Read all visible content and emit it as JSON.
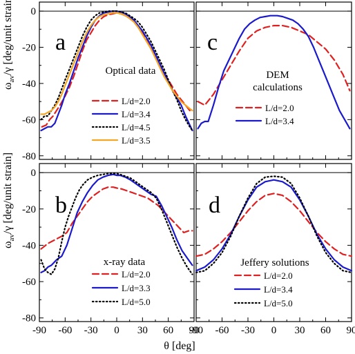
{
  "figure": {
    "xlabel": "θ [deg]",
    "ylabel_top": "ω",
    "ylabel_sub": "av",
    "ylabel_mid": "/",
    "ylabel_gamma": "γ",
    "ylabel_tail": " [deg/unit strain]",
    "xticks": [
      "-90",
      "-60",
      "-30",
      "0",
      "30",
      "60",
      "90"
    ],
    "yticks": [
      "0",
      "-20",
      "-40",
      "-60",
      "-80"
    ]
  },
  "styles": {
    "L/d=2.0": {
      "color": "#e02020",
      "dash": "9,5"
    },
    "L/d=3.4": {
      "color": "#1a1acc",
      "dash": ""
    },
    "L/d=3.3": {
      "color": "#1a1acc",
      "dash": ""
    },
    "L/d=4.5": {
      "color": "#000000",
      "dash": "1.5,3.5"
    },
    "L/d=5.0": {
      "color": "#000000",
      "dash": "1.5,3.5"
    },
    "L/d=3.5": {
      "color": "#f5a623",
      "dash": ""
    }
  },
  "chart_data": [
    {
      "panel": "a",
      "type": "line",
      "label": "a",
      "title": [
        "Optical data"
      ],
      "xlim": [
        -90,
        90
      ],
      "ylim": [
        -82,
        5
      ],
      "series": [
        {
          "name": "L/d=2.0",
          "x": [
            -87,
            -82,
            -78,
            -74,
            -70,
            -66,
            -60,
            -55,
            -50,
            -45,
            -40,
            -35,
            -30,
            -25,
            -20,
            -15,
            -10,
            -5,
            0,
            5,
            10,
            15,
            20,
            25,
            30,
            35,
            40,
            45,
            50,
            55,
            60,
            65,
            70,
            75,
            80,
            85,
            88
          ],
          "y": [
            -64,
            -63,
            -60,
            -58,
            -55,
            -52,
            -47,
            -42,
            -36,
            -29,
            -22,
            -16,
            -12,
            -8,
            -5,
            -3,
            -2,
            -1.5,
            -1,
            -1.5,
            -2.5,
            -4,
            -6,
            -9,
            -12,
            -16,
            -20,
            -24,
            -29,
            -34,
            -38,
            -42,
            -46,
            -49,
            -52,
            -55,
            -56
          ]
        },
        {
          "name": "L/d=3.4",
          "x": [
            -88,
            -84,
            -80,
            -76,
            -72,
            -68,
            -64,
            -60,
            -55,
            -50,
            -45,
            -40,
            -35,
            -30,
            -25,
            -20,
            -15,
            -10,
            -5,
            0,
            5,
            10,
            15,
            20,
            25,
            30,
            35,
            40,
            45,
            50,
            55,
            60,
            65,
            70,
            75,
            80,
            85,
            88
          ],
          "y": [
            -66,
            -65,
            -64,
            -64,
            -62,
            -57,
            -52,
            -46,
            -40,
            -33,
            -26,
            -20,
            -14,
            -9,
            -5,
            -2.5,
            -1,
            -0.5,
            0,
            0,
            -0.5,
            -1.5,
            -3,
            -5,
            -8,
            -11,
            -15,
            -19,
            -24,
            -29,
            -34,
            -39,
            -44,
            -48,
            -52,
            -58,
            -63,
            -66
          ]
        },
        {
          "name": "L/d=4.5",
          "x": [
            -88,
            -84,
            -80,
            -76,
            -72,
            -68,
            -64,
            -60,
            -55,
            -50,
            -45,
            -40,
            -35,
            -30,
            -25,
            -20,
            -15,
            -10,
            -5,
            0,
            5,
            10,
            15,
            20,
            25,
            30,
            35,
            40,
            45,
            50,
            55,
            60,
            65,
            70,
            75,
            80,
            85,
            88
          ],
          "y": [
            -60,
            -58,
            -58,
            -55,
            -52,
            -48,
            -43,
            -38,
            -32,
            -26,
            -20,
            -14,
            -9,
            -5,
            -2.5,
            -1,
            -0.5,
            0,
            0,
            0,
            -0.5,
            -1,
            -2.5,
            -4,
            -6,
            -9,
            -13,
            -17,
            -22,
            -27,
            -32,
            -38,
            -44,
            -49,
            -55,
            -60,
            -64,
            -66
          ]
        },
        {
          "name": "L/d=3.5",
          "x": [
            -88,
            -84,
            -80,
            -76,
            -72,
            -68,
            -64,
            -60,
            -55,
            -50,
            -45,
            -40,
            -35,
            -30,
            -25,
            -20,
            -15,
            -10,
            -5,
            0,
            5,
            10,
            15,
            20,
            25,
            30,
            35,
            40,
            45,
            50,
            55,
            60,
            65,
            70,
            75,
            80,
            85,
            88
          ],
          "y": [
            -57,
            -57,
            -56,
            -55,
            -53,
            -50,
            -46,
            -41,
            -35,
            -29,
            -23,
            -17,
            -12,
            -8,
            -5,
            -3,
            -2,
            -1.5,
            -1,
            -1,
            -1.5,
            -2.5,
            -4,
            -6,
            -9,
            -13,
            -17,
            -21,
            -26,
            -31,
            -36,
            -40,
            -44,
            -47,
            -50,
            -52,
            -54,
            -55
          ]
        }
      ]
    },
    {
      "panel": "c",
      "type": "line",
      "label": "c",
      "title": [
        "DEM",
        "calculations"
      ],
      "xlim": [
        -90,
        90
      ],
      "ylim": [
        -82,
        5
      ],
      "series": [
        {
          "name": "L/d=2.0",
          "x": [
            -88,
            -80,
            -70,
            -60,
            -50,
            -40,
            -30,
            -20,
            -10,
            0,
            10,
            20,
            30,
            40,
            50,
            60,
            70,
            80,
            88
          ],
          "y": [
            -50,
            -52,
            -46,
            -38,
            -30,
            -22,
            -15,
            -11,
            -9,
            -8,
            -8,
            -9,
            -11,
            -13,
            -17,
            -21,
            -27,
            -35,
            -44
          ]
        },
        {
          "name": "L/d=3.4",
          "x": [
            -88,
            -84,
            -80,
            -76,
            -70,
            -64,
            -58,
            -52,
            -46,
            -40,
            -34,
            -28,
            -22,
            -16,
            -10,
            -4,
            0,
            4,
            10,
            16,
            22,
            28,
            34,
            40,
            46,
            52,
            58,
            64,
            70,
            76,
            82,
            88
          ],
          "y": [
            -65,
            -62,
            -61,
            -61,
            -52,
            -42,
            -33,
            -27,
            -21,
            -15,
            -10,
            -7,
            -5,
            -3.5,
            -3,
            -2.5,
            -2.5,
            -2.5,
            -3,
            -4,
            -5,
            -7,
            -10,
            -14,
            -20,
            -27,
            -34,
            -41,
            -48,
            -55,
            -60,
            -65
          ]
        }
      ]
    },
    {
      "panel": "b",
      "type": "line",
      "label": "b",
      "title": [
        "x-ray data"
      ],
      "xlim": [
        -90,
        90
      ],
      "ylim": [
        -82,
        5
      ],
      "series": [
        {
          "name": "L/d=2.0",
          "x": [
            -88,
            -80,
            -72,
            -64,
            -58,
            -52,
            -46,
            -40,
            -34,
            -28,
            -22,
            -16,
            -10,
            -4,
            0,
            6,
            12,
            18,
            24,
            30,
            36,
            42,
            48,
            54,
            60,
            66,
            72,
            78,
            84,
            88
          ],
          "y": [
            -42,
            -39,
            -37,
            -35,
            -33,
            -28,
            -24,
            -20,
            -16,
            -13,
            -11,
            -9,
            -8,
            -8,
            -8.5,
            -9,
            -10,
            -11,
            -12,
            -13,
            -14,
            -16,
            -18,
            -21,
            -24,
            -27,
            -30,
            -33,
            -32,
            -32
          ]
        },
        {
          "name": "L/d=3.3",
          "x": [
            -88,
            -84,
            -80,
            -76,
            -70,
            -64,
            -58,
            -54,
            -50,
            -46,
            -40,
            -34,
            -28,
            -22,
            -16,
            -10,
            -4,
            0,
            4,
            10,
            16,
            22,
            28,
            34,
            40,
            46,
            52,
            58,
            64,
            70,
            76,
            82,
            88
          ],
          "y": [
            -55,
            -54,
            -52,
            -51,
            -48,
            -46,
            -40,
            -34,
            -28,
            -22,
            -16,
            -11,
            -7,
            -4,
            -2.5,
            -1.5,
            -1,
            -1.5,
            -1.5,
            -2.5,
            -4,
            -6,
            -8,
            -10,
            -12,
            -13,
            -18,
            -24,
            -30,
            -37,
            -43,
            -47,
            -51
          ]
        },
        {
          "name": "L/d=5.0",
          "x": [
            -88,
            -84,
            -80,
            -76,
            -72,
            -68,
            -64,
            -60,
            -56,
            -52,
            -48,
            -44,
            -40,
            -34,
            -28,
            -22,
            -16,
            -10,
            -4,
            0,
            4,
            10,
            16,
            22,
            28,
            34,
            40,
            46,
            52,
            58,
            64,
            70,
            76,
            82,
            88
          ],
          "y": [
            -48,
            -53,
            -55,
            -56,
            -53,
            -47,
            -38,
            -30,
            -24,
            -19,
            -14,
            -10,
            -7,
            -4,
            -2.5,
            -1.5,
            -1,
            -0.5,
            -0.5,
            -0.5,
            -1,
            -2,
            -3,
            -5,
            -7,
            -9,
            -11,
            -14,
            -20,
            -27,
            -34,
            -41,
            -47,
            -52,
            -56
          ]
        }
      ]
    },
    {
      "panel": "d",
      "type": "line",
      "label": "d",
      "title": [
        "Jeffery solutions"
      ],
      "xlim": [
        -90,
        90
      ],
      "ylim": [
        -82,
        5
      ],
      "series": [
        {
          "name": "L/d=2.0",
          "x": [
            -90,
            -80,
            -70,
            -60,
            -50,
            -40,
            -30,
            -20,
            -10,
            0,
            10,
            20,
            30,
            40,
            50,
            60,
            70,
            80,
            90
          ],
          "y": [
            -46,
            -45,
            -42,
            -38,
            -33,
            -27,
            -21,
            -16,
            -12.5,
            -11.5,
            -12.5,
            -16,
            -21,
            -27,
            -33,
            -38,
            -42,
            -45,
            -46
          ]
        },
        {
          "name": "L/d=3.4",
          "x": [
            -90,
            -80,
            -70,
            -60,
            -50,
            -40,
            -30,
            -20,
            -10,
            0,
            10,
            20,
            30,
            40,
            50,
            60,
            70,
            80,
            90
          ],
          "y": [
            -54,
            -52,
            -48,
            -42,
            -34,
            -24,
            -15,
            -8,
            -5,
            -4,
            -5,
            -8,
            -15,
            -24,
            -34,
            -42,
            -48,
            -52,
            -54
          ]
        },
        {
          "name": "L/d=5.0",
          "x": [
            -90,
            -80,
            -70,
            -60,
            -50,
            -40,
            -30,
            -20,
            -10,
            0,
            10,
            20,
            30,
            40,
            50,
            60,
            70,
            80,
            90
          ],
          "y": [
            -55,
            -54,
            -50,
            -44,
            -35,
            -24,
            -14,
            -6,
            -2.5,
            -2,
            -2.5,
            -6,
            -14,
            -24,
            -35,
            -44,
            -50,
            -54,
            -55
          ]
        }
      ]
    }
  ]
}
